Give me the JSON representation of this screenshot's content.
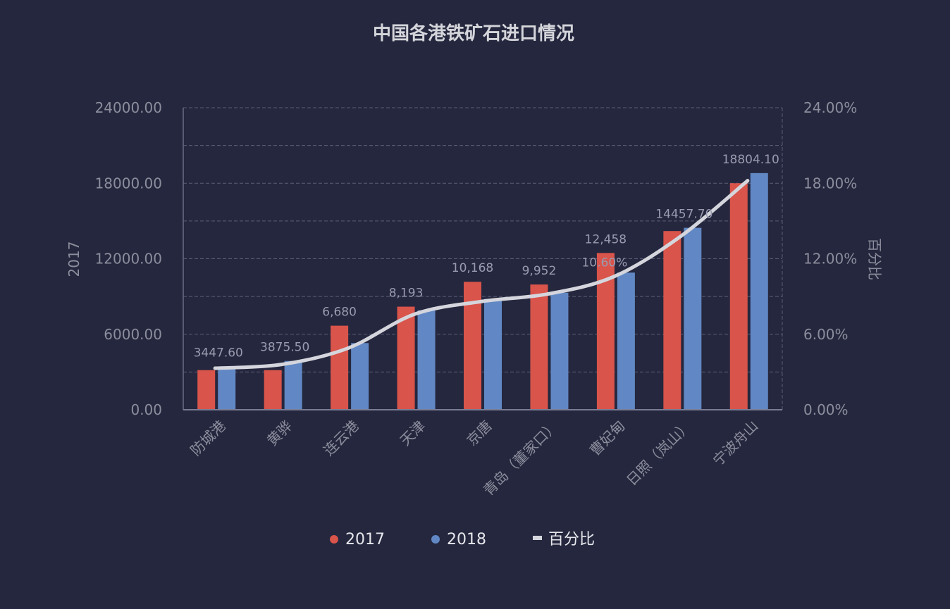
{
  "chart_data": {
    "type": "bar",
    "title": "中国各港铁矿石进口情况",
    "categories": [
      "防城港",
      "黄骅",
      "连云港",
      "天津",
      "京唐",
      "青岛（董家口）",
      "曹妃甸",
      "日照（岚山）",
      "宁波舟山"
    ],
    "series": [
      {
        "name": "2017",
        "type": "bar",
        "axis": "left",
        "color": "#d9544a",
        "values": [
          3150,
          3150,
          6680,
          8193,
          10168,
          9952,
          12458,
          14200,
          18000
        ],
        "data_labels": [
          "",
          "",
          "6,680",
          "8,193",
          "10,168",
          "9,952",
          "12,458",
          "",
          ""
        ]
      },
      {
        "name": "2018",
        "type": "bar",
        "axis": "left",
        "color": "#6188c4",
        "values": [
          3447.6,
          3875.5,
          5300,
          7900,
          8800,
          9300,
          10900,
          14457.7,
          18804.1
        ],
        "data_labels": [
          "3447.60",
          "3875.50",
          "",
          "",
          "",
          "",
          "",
          "14457.70",
          "18804.10"
        ]
      },
      {
        "name": "百分比",
        "type": "line",
        "axis": "right",
        "color": "#d5d6dd",
        "smooth": true,
        "values": [
          3.3,
          3.6,
          4.9,
          7.6,
          8.6,
          9.2,
          10.6,
          13.8,
          18.2
        ],
        "data_labels": [
          "",
          "",
          "",
          "",
          "",
          "",
          "10.60%",
          "",
          ""
        ]
      }
    ],
    "y_left": {
      "label": "2017",
      "range": [
        0,
        24000
      ],
      "ticks": [
        "0.00",
        "6000.00",
        "12000.00",
        "18000.00",
        "24000.00"
      ]
    },
    "y_right": {
      "label": "百分比",
      "range": [
        0,
        24
      ],
      "ticks": [
        "0.00%",
        "6.00%",
        "12.00%",
        "18.00%",
        "24.00%"
      ]
    },
    "grid": true,
    "legend_position": "bottom",
    "legend": [
      "2017",
      "2018",
      "百分比"
    ],
    "background": "#25273e"
  }
}
